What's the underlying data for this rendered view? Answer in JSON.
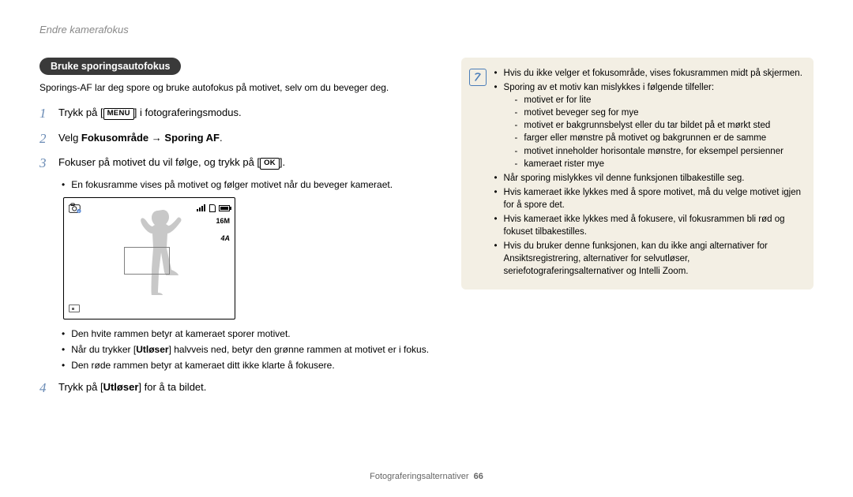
{
  "header": {
    "title": "Endre kamerafokus"
  },
  "section": {
    "pill": "Bruke sporingsautofokus",
    "intro": "Sporings-AF lar deg spore og bruke autofokus på motivet, selv om du beveger deg."
  },
  "buttons": {
    "menu": "MENU",
    "ok": "OK"
  },
  "steps": {
    "s1_a": "Trykk på [",
    "s1_b": "] i fotograferingsmodus.",
    "s2_a": "Velg ",
    "s2_b": "Fokusområde",
    "s2_arrow": " → ",
    "s2_c": "Sporing AF",
    "s2_d": ".",
    "s3_a": "Fokuser på motivet du vil følge, og trykk på [",
    "s3_b": "].",
    "s3_sub": "En fokusramme vises på motivet og følger motivet når du beveger kameraet.",
    "s4_a": "Trykk på [",
    "s4_b": "Utløser",
    "s4_c": "] for å ta bildet."
  },
  "preview": {
    "res": "16M",
    "flash": "4A"
  },
  "post_bullets": {
    "b1": "Den hvite rammen betyr at kameraet sporer motivet.",
    "b2a": "Når du trykker [",
    "b2b": "Utløser",
    "b2c": "] halvveis ned, betyr den grønne rammen at motivet er i fokus.",
    "b3": "Den røde rammen betyr at kameraet ditt ikke klarte å fokusere."
  },
  "info": {
    "i1": "Hvis du ikke velger et fokusområde, vises fokusrammen midt på skjermen.",
    "i2": "Sporing av et motiv kan mislykkes i følgende tilfeller:",
    "i2_sub": [
      "motivet er for lite",
      "motivet beveger seg for mye",
      "motivet er bakgrunnsbelyst eller du tar bildet på et mørkt sted",
      "farger eller mønstre på motivet og bakgrunnen er de samme",
      "motivet inneholder horisontale mønstre, for eksempel persienner",
      "kameraet rister mye"
    ],
    "i3": "Når sporing mislykkes vil denne funksjonen tilbakestille seg.",
    "i4": "Hvis kameraet ikke lykkes med å spore motivet, må du velge motivet igjen for å spore det.",
    "i5": "Hvis kameraet ikke lykkes med å fokusere, vil fokusrammen bli rød og fokuset tilbakestilles.",
    "i6": "Hvis du bruker denne funksjonen, kan du ikke angi alternativer for Ansiktsregistrering, alternativer for selvutløser, seriefotograferingsalternativer og Intelli Zoom."
  },
  "footer": {
    "section": "Fotograferingsalternativer",
    "page": "66"
  }
}
